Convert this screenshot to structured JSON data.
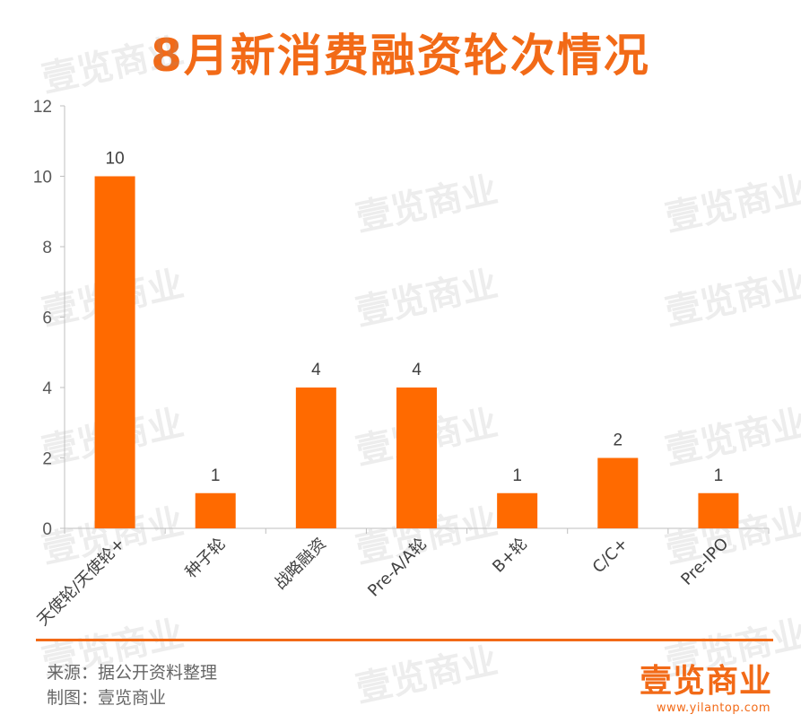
{
  "title": "8月新消费融资轮次情况",
  "watermark": "壹览商业",
  "footer": {
    "source": "来源：据公开资料整理",
    "maker": "制图：壹览商业"
  },
  "brand": {
    "logo_text": "壹览商业",
    "url": "www.yilantop.com"
  },
  "colors": {
    "accent": "#f26a17",
    "bar": "#ff6a00"
  },
  "chart_data": {
    "type": "bar",
    "categories": [
      "天使轮/天使轮+",
      "种子轮",
      "战略融资",
      "Pre-A/A轮",
      "B+轮",
      "C/C+",
      "Pre-IPO"
    ],
    "values": [
      10,
      1,
      4,
      4,
      1,
      2,
      1
    ],
    "data_labels": [
      "10",
      "1",
      "4",
      "4",
      "1",
      "2",
      "1"
    ],
    "ylim": [
      0,
      12
    ],
    "yticks": [
      0,
      2,
      4,
      6,
      8,
      10,
      12
    ],
    "grid": false,
    "legend": "none"
  }
}
